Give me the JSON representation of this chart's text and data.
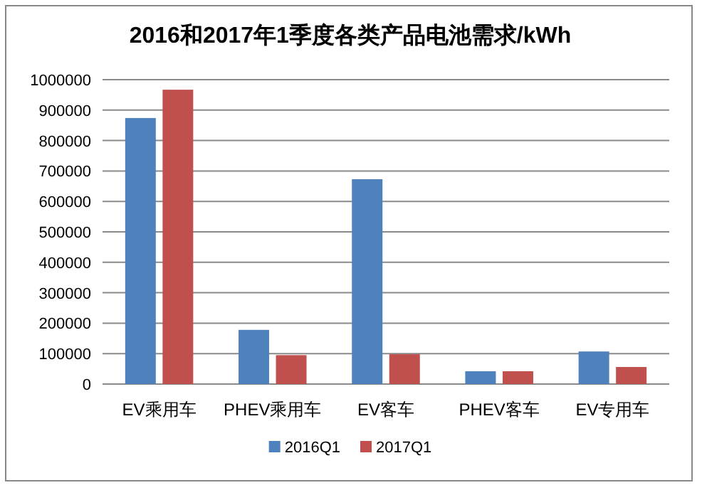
{
  "chart_data": {
    "type": "bar",
    "title": "2016和2017年1季度各类产品电池需求/kWh",
    "categories": [
      "EV乘用车",
      "PHEV乘用车",
      "EV客车",
      "PHEV客车",
      "EV专用车"
    ],
    "series": [
      {
        "name": "2016Q1",
        "color": "#4f81bd",
        "values": [
          874000,
          178000,
          673000,
          42000,
          107000
        ]
      },
      {
        "name": "2017Q1",
        "color": "#c0504d",
        "values": [
          967000,
          95000,
          98000,
          42000,
          56000
        ]
      }
    ],
    "ylim": [
      0,
      1000000
    ],
    "yticks": [
      0,
      100000,
      200000,
      300000,
      400000,
      500000,
      600000,
      700000,
      800000,
      900000,
      1000000
    ],
    "grid": "y",
    "legend": "bottom"
  }
}
